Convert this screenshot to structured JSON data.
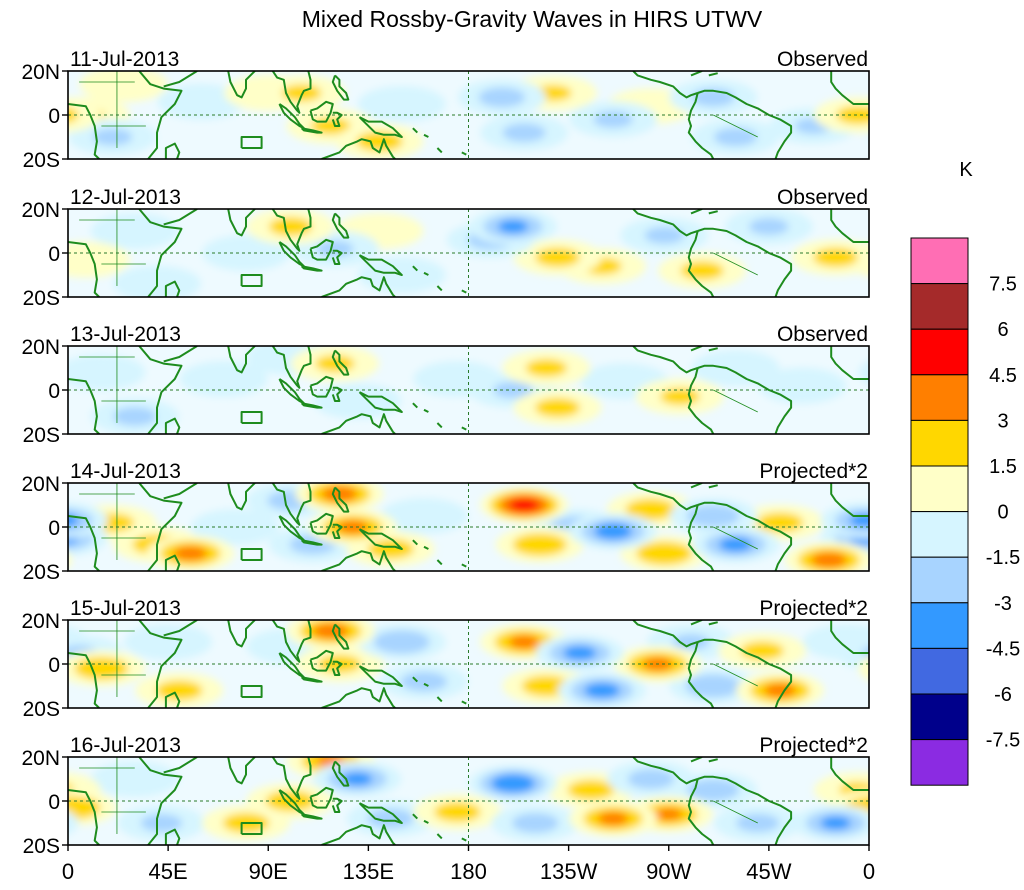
{
  "chart_data": {
    "type": "heatmap",
    "title": "Mixed Rossby-Gravity Waves in HIRS UTWV",
    "units_label": "K",
    "x_tick_labels": [
      "0",
      "45E",
      "90E",
      "135E",
      "180",
      "135W",
      "90W",
      "45W",
      "0"
    ],
    "x_range_deg_east": [
      0,
      360
    ],
    "y_tick_labels": [
      "20N",
      "0",
      "20S"
    ],
    "y_range_deg": [
      -20,
      20
    ],
    "colorbar": {
      "levels": [
        "7.5",
        "6",
        "4.5",
        "3",
        "1.5",
        "0",
        "-1.5",
        "-3",
        "-4.5",
        "-6",
        "-7.5"
      ],
      "colors": [
        "#ff6eb4",
        "#a52a2a",
        "#ff0000",
        "#ff7f00",
        "#ffd700",
        "#ffffc8",
        "#d6f5ff",
        "#a8d4ff",
        "#3399ff",
        "#4169e1",
        "#00008b",
        "#8b2be2"
      ]
    },
    "panels": [
      {
        "date": "11-Jul-2013",
        "label": "Observed"
      },
      {
        "date": "12-Jul-2013",
        "label": "Observed"
      },
      {
        "date": "13-Jul-2013",
        "label": "Observed"
      },
      {
        "date": "14-Jul-2013",
        "label": "Projected*2"
      },
      {
        "date": "15-Jul-2013",
        "label": "Projected*2"
      },
      {
        "date": "16-Jul-2013",
        "label": "Projected*2"
      }
    ],
    "blobs": [
      [
        {
          "lon": 8,
          "lat": 0,
          "v": 1.5
        },
        {
          "lon": 25,
          "lat": 14,
          "v": 0.8
        },
        {
          "lon": 20,
          "lat": -10,
          "v": -1.6
        },
        {
          "lon": 60,
          "lat": 6,
          "v": -1.2
        },
        {
          "lon": 90,
          "lat": 10,
          "v": 1.2
        },
        {
          "lon": 105,
          "lat": 10,
          "v": 1.6
        },
        {
          "lon": 118,
          "lat": -5,
          "v": 1.6
        },
        {
          "lon": 140,
          "lat": -12,
          "v": 2.0
        },
        {
          "lon": 150,
          "lat": 5,
          "v": -1.2
        },
        {
          "lon": 195,
          "lat": 8,
          "v": -2.0
        },
        {
          "lon": 205,
          "lat": -8,
          "v": -1.8
        },
        {
          "lon": 218,
          "lat": 10,
          "v": 1.5
        },
        {
          "lon": 245,
          "lat": -2,
          "v": -1.6
        },
        {
          "lon": 262,
          "lat": 4,
          "v": 1.3
        },
        {
          "lon": 290,
          "lat": 8,
          "v": -1.8
        },
        {
          "lon": 300,
          "lat": -10,
          "v": -1.8
        },
        {
          "lon": 335,
          "lat": -5,
          "v": -1.5
        },
        {
          "lon": 355,
          "lat": 0,
          "v": 1.8
        }
      ],
      [
        {
          "lon": 8,
          "lat": -3,
          "v": 1.3
        },
        {
          "lon": 30,
          "lat": 10,
          "v": -1.2
        },
        {
          "lon": 40,
          "lat": -14,
          "v": -1.4
        },
        {
          "lon": 80,
          "lat": 0,
          "v": -0.8
        },
        {
          "lon": 100,
          "lat": 12,
          "v": 1.8
        },
        {
          "lon": 120,
          "lat": 2,
          "v": -1.5
        },
        {
          "lon": 140,
          "lat": 10,
          "v": 1.4
        },
        {
          "lon": 150,
          "lat": -10,
          "v": -0.9
        },
        {
          "lon": 190,
          "lat": 6,
          "v": -2.0
        },
        {
          "lon": 200,
          "lat": 12,
          "v": -3.2
        },
        {
          "lon": 220,
          "lat": -2,
          "v": 1.9
        },
        {
          "lon": 240,
          "lat": -6,
          "v": 1.6
        },
        {
          "lon": 268,
          "lat": 8,
          "v": -1.6
        },
        {
          "lon": 285,
          "lat": -8,
          "v": 1.8
        },
        {
          "lon": 315,
          "lat": 12,
          "v": -1.6
        },
        {
          "lon": 345,
          "lat": -2,
          "v": 1.9
        }
      ],
      [
        {
          "lon": 15,
          "lat": 8,
          "v": -1.3
        },
        {
          "lon": 30,
          "lat": -12,
          "v": -1.8
        },
        {
          "lon": 70,
          "lat": 5,
          "v": -0.8
        },
        {
          "lon": 100,
          "lat": 15,
          "v": -1.2
        },
        {
          "lon": 120,
          "lat": 12,
          "v": 1.6
        },
        {
          "lon": 130,
          "lat": -5,
          "v": -1.0
        },
        {
          "lon": 175,
          "lat": 5,
          "v": -1.0
        },
        {
          "lon": 200,
          "lat": 0,
          "v": -1.6
        },
        {
          "lon": 215,
          "lat": 10,
          "v": 1.7
        },
        {
          "lon": 220,
          "lat": -8,
          "v": 1.9
        },
        {
          "lon": 250,
          "lat": 4,
          "v": -1.4
        },
        {
          "lon": 275,
          "lat": -3,
          "v": 1.6
        },
        {
          "lon": 300,
          "lat": 10,
          "v": -1.4
        },
        {
          "lon": 330,
          "lat": 2,
          "v": -1.2
        }
      ],
      [
        {
          "lon": -2,
          "lat": -5,
          "v": -3.2
        },
        {
          "lon": 20,
          "lat": 2,
          "v": 1.8
        },
        {
          "lon": 40,
          "lat": -8,
          "v": 2.2
        },
        {
          "lon": 55,
          "lat": -12,
          "v": 3.4
        },
        {
          "lon": 75,
          "lat": 0,
          "v": -1.2
        },
        {
          "lon": 100,
          "lat": 12,
          "v": -2.0
        },
        {
          "lon": 110,
          "lat": -8,
          "v": -2.0
        },
        {
          "lon": 122,
          "lat": 15,
          "v": 3.6
        },
        {
          "lon": 128,
          "lat": 0,
          "v": 3.2
        },
        {
          "lon": 145,
          "lat": -10,
          "v": 2.0
        },
        {
          "lon": 160,
          "lat": 5,
          "v": -1.3
        },
        {
          "lon": 205,
          "lat": 10,
          "v": 5.2
        },
        {
          "lon": 212,
          "lat": -8,
          "v": 2.6
        },
        {
          "lon": 228,
          "lat": 0,
          "v": -2.4
        },
        {
          "lon": 245,
          "lat": -2,
          "v": -3.8
        },
        {
          "lon": 262,
          "lat": 8,
          "v": 2.3
        },
        {
          "lon": 268,
          "lat": -12,
          "v": 2.8
        },
        {
          "lon": 290,
          "lat": 5,
          "v": -2.5
        },
        {
          "lon": 300,
          "lat": -8,
          "v": -3.4
        },
        {
          "lon": 320,
          "lat": 2,
          "v": 2.0
        },
        {
          "lon": 342,
          "lat": -15,
          "v": 3.6
        },
        {
          "lon": 358,
          "lat": 3,
          "v": -3.2
        }
      ],
      [
        {
          "lon": 5,
          "lat": 5,
          "v": -1.5
        },
        {
          "lon": 15,
          "lat": -2,
          "v": 2.6
        },
        {
          "lon": 45,
          "lat": 10,
          "v": -1.4
        },
        {
          "lon": 50,
          "lat": -12,
          "v": 2.0
        },
        {
          "lon": 100,
          "lat": 8,
          "v": -1.3
        },
        {
          "lon": 118,
          "lat": 15,
          "v": 3.6
        },
        {
          "lon": 122,
          "lat": 0,
          "v": 1.8
        },
        {
          "lon": 150,
          "lat": 10,
          "v": -2.8
        },
        {
          "lon": 160,
          "lat": -8,
          "v": -2.0
        },
        {
          "lon": 205,
          "lat": 10,
          "v": 3.2
        },
        {
          "lon": 215,
          "lat": -10,
          "v": 2.2
        },
        {
          "lon": 230,
          "lat": 5,
          "v": -3.4
        },
        {
          "lon": 240,
          "lat": -12,
          "v": -3.6
        },
        {
          "lon": 265,
          "lat": 0,
          "v": 3.2
        },
        {
          "lon": 280,
          "lat": 10,
          "v": -1.5
        },
        {
          "lon": 290,
          "lat": -10,
          "v": -2.8
        },
        {
          "lon": 312,
          "lat": 6,
          "v": 1.8
        },
        {
          "lon": 320,
          "lat": -12,
          "v": 3.3
        },
        {
          "lon": 350,
          "lat": 10,
          "v": -1.3
        }
      ],
      [
        {
          "lon": 2,
          "lat": -3,
          "v": 2.8
        },
        {
          "lon": 30,
          "lat": 10,
          "v": -1.2
        },
        {
          "lon": 42,
          "lat": -10,
          "v": -1.7
        },
        {
          "lon": 80,
          "lat": -10,
          "v": 2.0
        },
        {
          "lon": 100,
          "lat": 0,
          "v": 2.2
        },
        {
          "lon": 118,
          "lat": 18,
          "v": 3.0
        },
        {
          "lon": 130,
          "lat": 10,
          "v": -3.2
        },
        {
          "lon": 145,
          "lat": -8,
          "v": -2.0
        },
        {
          "lon": 175,
          "lat": -5,
          "v": 2.0
        },
        {
          "lon": 200,
          "lat": 8,
          "v": -4.4
        },
        {
          "lon": 210,
          "lat": -10,
          "v": -2.0
        },
        {
          "lon": 235,
          "lat": 5,
          "v": 2.0
        },
        {
          "lon": 245,
          "lat": -8,
          "v": 3.2
        },
        {
          "lon": 262,
          "lat": 10,
          "v": -2.0
        },
        {
          "lon": 270,
          "lat": -6,
          "v": 3.0
        },
        {
          "lon": 290,
          "lat": 5,
          "v": -2.4
        },
        {
          "lon": 310,
          "lat": -10,
          "v": -1.8
        },
        {
          "lon": 345,
          "lat": -10,
          "v": -3.2
        },
        {
          "lon": 355,
          "lat": 5,
          "v": 1.5
        }
      ]
    ]
  }
}
